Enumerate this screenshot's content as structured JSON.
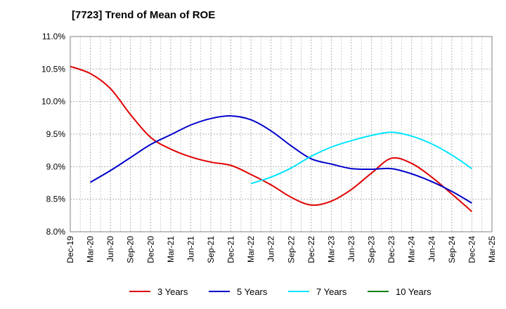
{
  "title": "[7723]  Trend of Mean of ROE",
  "chart_data": {
    "type": "line",
    "title": "[7723]  Trend of Mean of ROE",
    "x": [
      "Dec-19",
      "Mar-20",
      "Jun-20",
      "Sep-20",
      "Dec-20",
      "Mar-21",
      "Jun-21",
      "Sep-21",
      "Dec-21",
      "Mar-22",
      "Jun-22",
      "Sep-22",
      "Dec-22",
      "Mar-23",
      "Jun-23",
      "Sep-23",
      "Dec-23",
      "Mar-24",
      "Jun-24",
      "Sep-24",
      "Dec-24",
      "Mar-25"
    ],
    "y_ticks": [
      "8.0%",
      "8.5%",
      "9.0%",
      "9.5%",
      "10.0%",
      "10.5%",
      "11.0%"
    ],
    "ylim": [
      8.0,
      11.0
    ],
    "grid": true,
    "legend_position": "bottom",
    "series": [
      {
        "name": "3 Years",
        "color": "#e00000",
        "values": [
          10.54,
          10.43,
          10.2,
          9.8,
          9.45,
          9.27,
          9.15,
          9.07,
          9.02,
          8.88,
          8.72,
          8.53,
          8.41,
          8.47,
          8.65,
          8.9,
          9.13,
          9.05,
          8.84,
          8.58,
          8.31,
          null
        ]
      },
      {
        "name": "5 Years",
        "color": "#0000cc",
        "values": [
          null,
          8.76,
          8.94,
          9.14,
          9.34,
          9.49,
          9.64,
          9.74,
          9.78,
          9.72,
          9.55,
          9.32,
          9.12,
          9.04,
          8.97,
          8.96,
          8.97,
          8.89,
          8.77,
          8.62,
          8.44,
          null
        ]
      },
      {
        "name": "7 Years",
        "color": "#00e5ff",
        "values": [
          null,
          null,
          null,
          null,
          null,
          null,
          null,
          null,
          null,
          8.74,
          8.84,
          8.98,
          9.16,
          9.3,
          9.4,
          9.48,
          9.53,
          9.47,
          9.35,
          9.18,
          8.97,
          null
        ]
      },
      {
        "name": "10 Years",
        "color": "#008000",
        "values": [
          null,
          null,
          null,
          null,
          null,
          null,
          null,
          null,
          null,
          null,
          null,
          null,
          null,
          null,
          null,
          null,
          null,
          null,
          null,
          null,
          null,
          null
        ]
      }
    ]
  }
}
